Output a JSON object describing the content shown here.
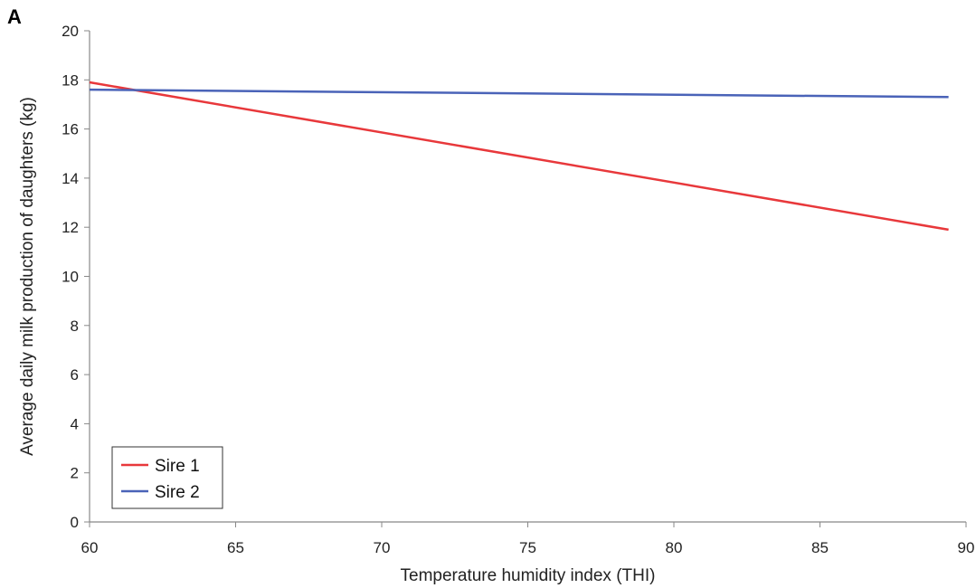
{
  "panel_label": "A",
  "chart_data": {
    "type": "line",
    "title": "",
    "xlabel": "Temperature humidity index (THI)",
    "ylabel": "Average daily milk production of daughters (kg)",
    "xlim": [
      60,
      90
    ],
    "ylim": [
      0,
      20
    ],
    "x_ticks": [
      60,
      65,
      70,
      75,
      80,
      85,
      90
    ],
    "y_ticks": [
      0,
      2,
      4,
      6,
      8,
      10,
      12,
      14,
      16,
      18,
      20
    ],
    "grid": false,
    "legend_position": "bottom-left",
    "series": [
      {
        "name": "Sire 1",
        "color": "#e8383b",
        "x": [
          60,
          89.4
        ],
        "y": [
          17.9,
          11.9
        ]
      },
      {
        "name": "Sire 2",
        "color": "#4a63b8",
        "x": [
          60,
          89.4
        ],
        "y": [
          17.6,
          17.3
        ]
      }
    ]
  }
}
